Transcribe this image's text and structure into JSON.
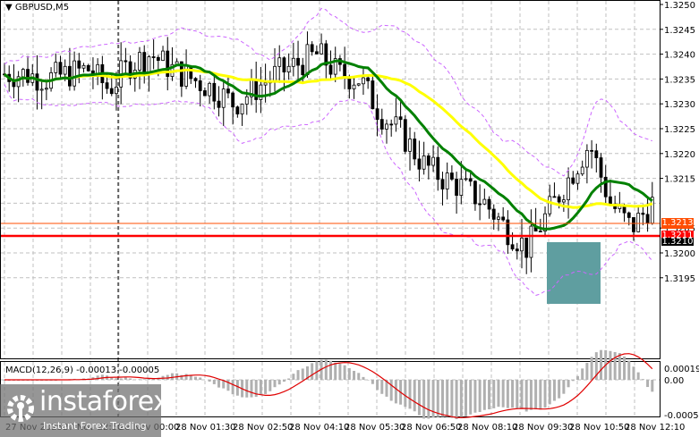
{
  "chart": {
    "symbol_title": "GBPUSD,M5",
    "macd_label": "MACD(12,26,9) -0.00013 -0.00005",
    "price_axis": [
      "1.3250",
      "1.3245",
      "1.3240",
      "1.3235",
      "1.3230",
      "1.3225",
      "1.3220",
      "1.3215",
      "1.3205",
      "1.3200",
      "1.3195"
    ],
    "macd_axis": {
      "top": "0.00019",
      "zero": "0.00",
      "bottom": "-0.00053"
    },
    "time_axis": [
      "27 Nov 2025",
      "27 Nov 22:50",
      "28 Nov 00:00",
      "28 Nov 01:30",
      "28 Nov 02:50",
      "28 Nov 04:10",
      "28 Nov 05:30",
      "28 Nov 06:50",
      "28 Nov 08:10",
      "28 Nov 09:30",
      "28 Nov 10:50",
      "28 Nov 12:10"
    ],
    "price_tags": {
      "orange": "1.3213",
      "red": "1.3211",
      "black": "1.3210"
    },
    "colors": {
      "orange": "#ff4d00",
      "red": "#ff0000",
      "ma_yellow": "#ffff00",
      "ma_green": "#008000",
      "bands": "#cc66ff",
      "box": "#5f9ea0"
    }
  },
  "logo": {
    "brand": "instaforex",
    "tagline": "Instant Forex Trading"
  },
  "chart_data": {
    "type": "candlestick",
    "title": "GBPUSD,M5",
    "ylim": [
      1.319,
      1.325
    ],
    "yticks": [
      1.3195,
      1.32,
      1.3205,
      1.321,
      1.3215,
      1.322,
      1.3225,
      1.323,
      1.3235,
      1.324,
      1.3245,
      1.325
    ],
    "x_ticks": [
      "27 Nov 2025",
      "27 Nov 22:50",
      "28 Nov 00:00",
      "28 Nov 01:30",
      "28 Nov 02:50",
      "28 Nov 04:10",
      "28 Nov 05:30",
      "28 Nov 06:50",
      "28 Nov 08:10",
      "28 Nov 09:30",
      "28 Nov 10:50",
      "28 Nov 12:10"
    ],
    "horizontal_lines": [
      {
        "price": 1.3213,
        "color": "orange"
      },
      {
        "price": 1.3211,
        "color": "red"
      }
    ],
    "last_price": 1.321,
    "approx_close_series": [
      1.3236,
      1.3236,
      1.3235,
      1.3236,
      1.3237,
      1.3233,
      1.3238,
      1.324,
      1.3237,
      1.3235,
      1.3233,
      1.323,
      1.3233,
      1.3236,
      1.3238,
      1.324,
      1.3236,
      1.3235,
      1.3228,
      1.3224,
      1.3218,
      1.3215,
      1.3213,
      1.321,
      1.3205,
      1.3201,
      1.3208,
      1.3215,
      1.3222,
      1.321,
      1.3205,
      1.321
    ],
    "indicators": [
      "MA yellow (slow)",
      "MA green (fast)",
      "Bollinger Bands (dashed purple)",
      "MACD(12,26,9) histogram + signal"
    ],
    "macd": {
      "value": -0.00013,
      "signal": -5e-05,
      "ylim": [
        -0.00053,
        0.00019
      ]
    },
    "highlight_box": {
      "from_price": 1.321,
      "to_price": 1.32,
      "approx_time": "28 Nov 09:30-10:50"
    }
  }
}
